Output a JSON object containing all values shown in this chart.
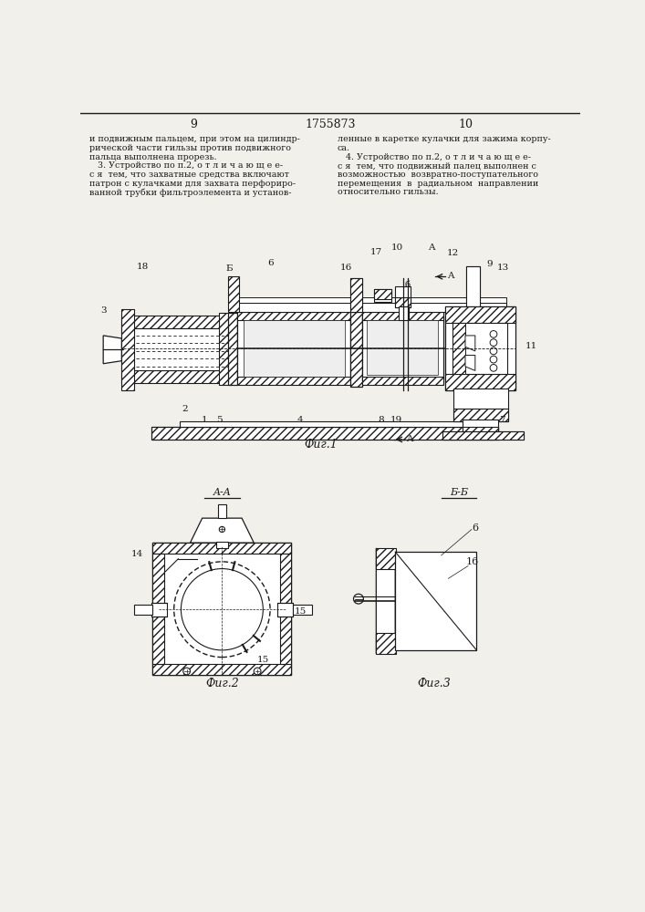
{
  "bg": "#f2f0eb",
  "lc": "#1a1a1a",
  "page_left": "9",
  "page_center": "1755873",
  "page_right": "10",
  "text_left": [
    "и подвижным пальцем, при этом на цилиндр-",
    "рической части гильзы против подвижного",
    "пальца выполнена прорезь.",
    "   3. Устройство по п.2, о т л и ч а ю щ е е-",
    "с я  тем, что захватные средства включают",
    "патрон с кулачками для захвата перфориро-",
    "ванной трубки фильтроэлемента и установ-"
  ],
  "text_right": [
    "ленные в каретке кулачки для зажима корпу-",
    "са.",
    "   4. Устройство по п.2, о т л и ч а ю щ е е-",
    "с я  тем, что подвижный палец выполнен с",
    "возможностью  возвратно-поступательного",
    "перемещения  в  радиальном  направлении",
    "относительно гильзы."
  ]
}
